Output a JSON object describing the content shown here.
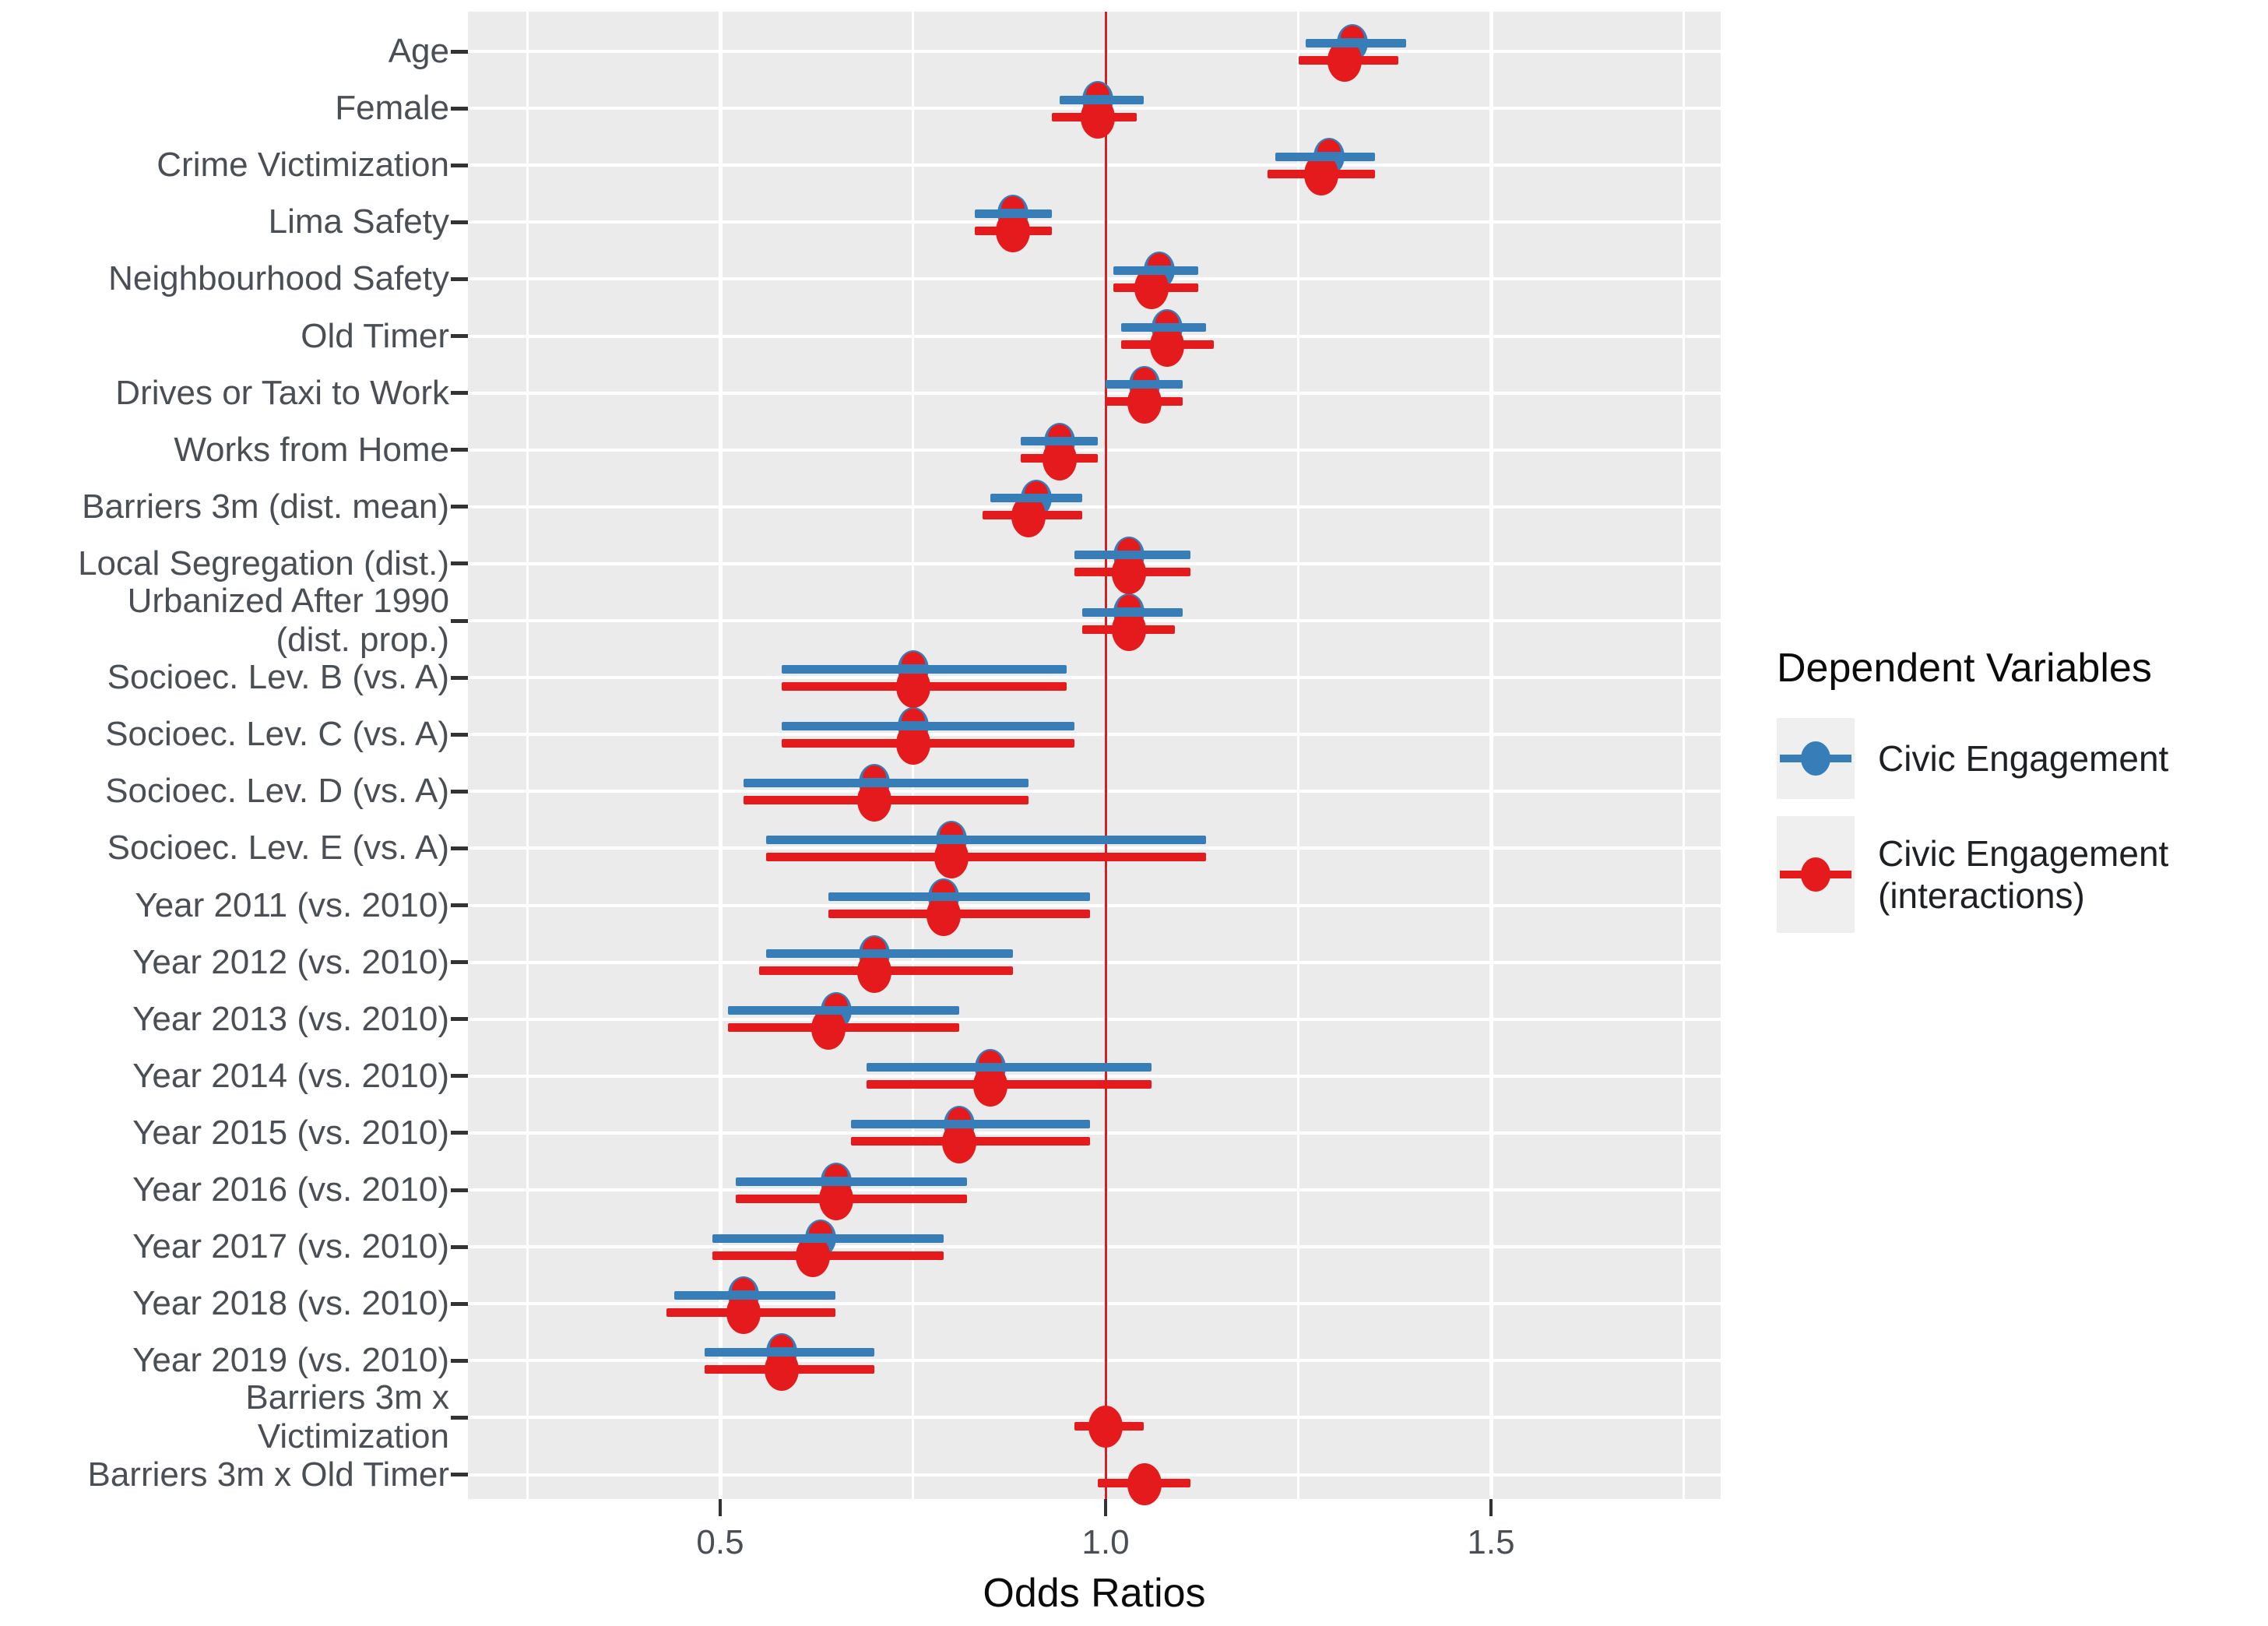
{
  "chart_data": {
    "type": "pointrange-forest",
    "title": "",
    "xlabel": "Odds Ratios",
    "x_ticks": [
      "0.5",
      "1.0",
      "1.5"
    ],
    "x_tick_values": [
      0.5,
      1.0,
      1.5
    ],
    "x_minor_tick_values": [
      0.25,
      0.75,
      1.25,
      1.75
    ],
    "xlim": [
      0.173,
      1.8
    ],
    "grid": "on",
    "reference_line": {
      "x": 1.0,
      "color": "#E01B1D"
    },
    "legend": {
      "position": "right",
      "title": "Dependent Variables",
      "entries": [
        {
          "label_lines": [
            "Civic Engagement"
          ],
          "color": "#377EB8"
        },
        {
          "label_lines": [
            "Civic Engagement",
            "(interactions)"
          ],
          "color": "#E41A1C"
        }
      ]
    },
    "categories": [
      {
        "label_lines": [
          "Age"
        ]
      },
      {
        "label_lines": [
          "Female"
        ]
      },
      {
        "label_lines": [
          "Crime Victimization"
        ]
      },
      {
        "label_lines": [
          "Lima Safety"
        ]
      },
      {
        "label_lines": [
          "Neighbourhood Safety"
        ]
      },
      {
        "label_lines": [
          "Old Timer"
        ]
      },
      {
        "label_lines": [
          "Drives or Taxi to Work"
        ]
      },
      {
        "label_lines": [
          "Works from Home"
        ]
      },
      {
        "label_lines": [
          "Barriers 3m (dist. mean)"
        ]
      },
      {
        "label_lines": [
          "Local Segregation (dist.)"
        ]
      },
      {
        "label_lines": [
          "Urbanized After 1990",
          "(dist. prop.)"
        ]
      },
      {
        "label_lines": [
          "Socioec. Lev. B (vs. A)"
        ]
      },
      {
        "label_lines": [
          "Socioec. Lev. C (vs. A)"
        ]
      },
      {
        "label_lines": [
          "Socioec. Lev. D (vs. A)"
        ]
      },
      {
        "label_lines": [
          "Socioec. Lev. E (vs. A)"
        ]
      },
      {
        "label_lines": [
          "Year 2011 (vs. 2010)"
        ]
      },
      {
        "label_lines": [
          "Year 2012 (vs. 2010)"
        ]
      },
      {
        "label_lines": [
          "Year 2013 (vs. 2010)"
        ]
      },
      {
        "label_lines": [
          "Year 2014 (vs. 2010)"
        ]
      },
      {
        "label_lines": [
          "Year 2015 (vs. 2010)"
        ]
      },
      {
        "label_lines": [
          "Year 2016 (vs. 2010)"
        ]
      },
      {
        "label_lines": [
          "Year 2017 (vs. 2010)"
        ]
      },
      {
        "label_lines": [
          "Year 2018 (vs. 2010)"
        ]
      },
      {
        "label_lines": [
          "Year 2019 (vs. 2010)"
        ]
      },
      {
        "label_lines": [
          "Barriers 3m x",
          "Victimization"
        ]
      },
      {
        "label_lines": [
          "Barriers 3m x Old Timer"
        ]
      }
    ],
    "series": [
      {
        "name": "Civic Engagement",
        "color": "#377EB8",
        "values": [
          {
            "or": 1.32,
            "lo": 1.26,
            "hi": 1.39
          },
          {
            "or": 0.99,
            "lo": 0.94,
            "hi": 1.05
          },
          {
            "or": 1.29,
            "lo": 1.22,
            "hi": 1.35
          },
          {
            "or": 0.88,
            "lo": 0.83,
            "hi": 0.93
          },
          {
            "or": 1.07,
            "lo": 1.01,
            "hi": 1.12
          },
          {
            "or": 1.08,
            "lo": 1.02,
            "hi": 1.13
          },
          {
            "or": 1.05,
            "lo": 1.0,
            "hi": 1.1
          },
          {
            "or": 0.94,
            "lo": 0.89,
            "hi": 0.99
          },
          {
            "or": 0.91,
            "lo": 0.85,
            "hi": 0.97
          },
          {
            "or": 1.03,
            "lo": 0.96,
            "hi": 1.11
          },
          {
            "or": 1.03,
            "lo": 0.97,
            "hi": 1.1
          },
          {
            "or": 0.75,
            "lo": 0.58,
            "hi": 0.95
          },
          {
            "or": 0.75,
            "lo": 0.58,
            "hi": 0.96
          },
          {
            "or": 0.7,
            "lo": 0.53,
            "hi": 0.9
          },
          {
            "or": 0.8,
            "lo": 0.56,
            "hi": 1.13
          },
          {
            "or": 0.79,
            "lo": 0.64,
            "hi": 0.98
          },
          {
            "or": 0.7,
            "lo": 0.56,
            "hi": 0.88
          },
          {
            "or": 0.65,
            "lo": 0.51,
            "hi": 0.81
          },
          {
            "or": 0.85,
            "lo": 0.69,
            "hi": 1.06
          },
          {
            "or": 0.81,
            "lo": 0.67,
            "hi": 0.98
          },
          {
            "or": 0.65,
            "lo": 0.52,
            "hi": 0.82
          },
          {
            "or": 0.63,
            "lo": 0.49,
            "hi": 0.79
          },
          {
            "or": 0.53,
            "lo": 0.44,
            "hi": 0.65
          },
          {
            "or": 0.58,
            "lo": 0.48,
            "hi": 0.7
          },
          null,
          null
        ]
      },
      {
        "name": "Civic Engagement (interactions)",
        "color": "#E41A1C",
        "values": [
          {
            "or": 1.31,
            "lo": 1.25,
            "hi": 1.38
          },
          {
            "or": 0.99,
            "lo": 0.93,
            "hi": 1.04
          },
          {
            "or": 1.28,
            "lo": 1.21,
            "hi": 1.35
          },
          {
            "or": 0.88,
            "lo": 0.83,
            "hi": 0.93
          },
          {
            "or": 1.06,
            "lo": 1.01,
            "hi": 1.12
          },
          {
            "or": 1.08,
            "lo": 1.02,
            "hi": 1.14
          },
          {
            "or": 1.05,
            "lo": 1.0,
            "hi": 1.1
          },
          {
            "or": 0.94,
            "lo": 0.89,
            "hi": 0.99
          },
          {
            "or": 0.9,
            "lo": 0.84,
            "hi": 0.97
          },
          {
            "or": 1.03,
            "lo": 0.96,
            "hi": 1.11
          },
          {
            "or": 1.03,
            "lo": 0.97,
            "hi": 1.09
          },
          {
            "or": 0.75,
            "lo": 0.58,
            "hi": 0.95
          },
          {
            "or": 0.75,
            "lo": 0.58,
            "hi": 0.96
          },
          {
            "or": 0.7,
            "lo": 0.53,
            "hi": 0.9
          },
          {
            "or": 0.8,
            "lo": 0.56,
            "hi": 1.13
          },
          {
            "or": 0.79,
            "lo": 0.64,
            "hi": 0.98
          },
          {
            "or": 0.7,
            "lo": 0.55,
            "hi": 0.88
          },
          {
            "or": 0.64,
            "lo": 0.51,
            "hi": 0.81
          },
          {
            "or": 0.85,
            "lo": 0.69,
            "hi": 1.06
          },
          {
            "or": 0.81,
            "lo": 0.67,
            "hi": 0.98
          },
          {
            "or": 0.65,
            "lo": 0.52,
            "hi": 0.82
          },
          {
            "or": 0.62,
            "lo": 0.49,
            "hi": 0.79
          },
          {
            "or": 0.53,
            "lo": 0.43,
            "hi": 0.65
          },
          {
            "or": 0.58,
            "lo": 0.48,
            "hi": 0.7
          },
          {
            "or": 1.0,
            "lo": 0.96,
            "hi": 1.05
          },
          {
            "or": 1.05,
            "lo": 0.99,
            "hi": 1.11
          }
        ]
      }
    ]
  },
  "colors": {
    "panel_background": "#EBEBEB",
    "gridline": "#FFFFFF",
    "axis_text": "#4a4f55",
    "axis_title": "#0b0b0b",
    "tick_mark": "#333333",
    "legend_key_background": "#EFEFEF",
    "series_blue": "#377EB8",
    "series_red": "#E41A1C",
    "reference_line_red": "#E01B1D"
  }
}
